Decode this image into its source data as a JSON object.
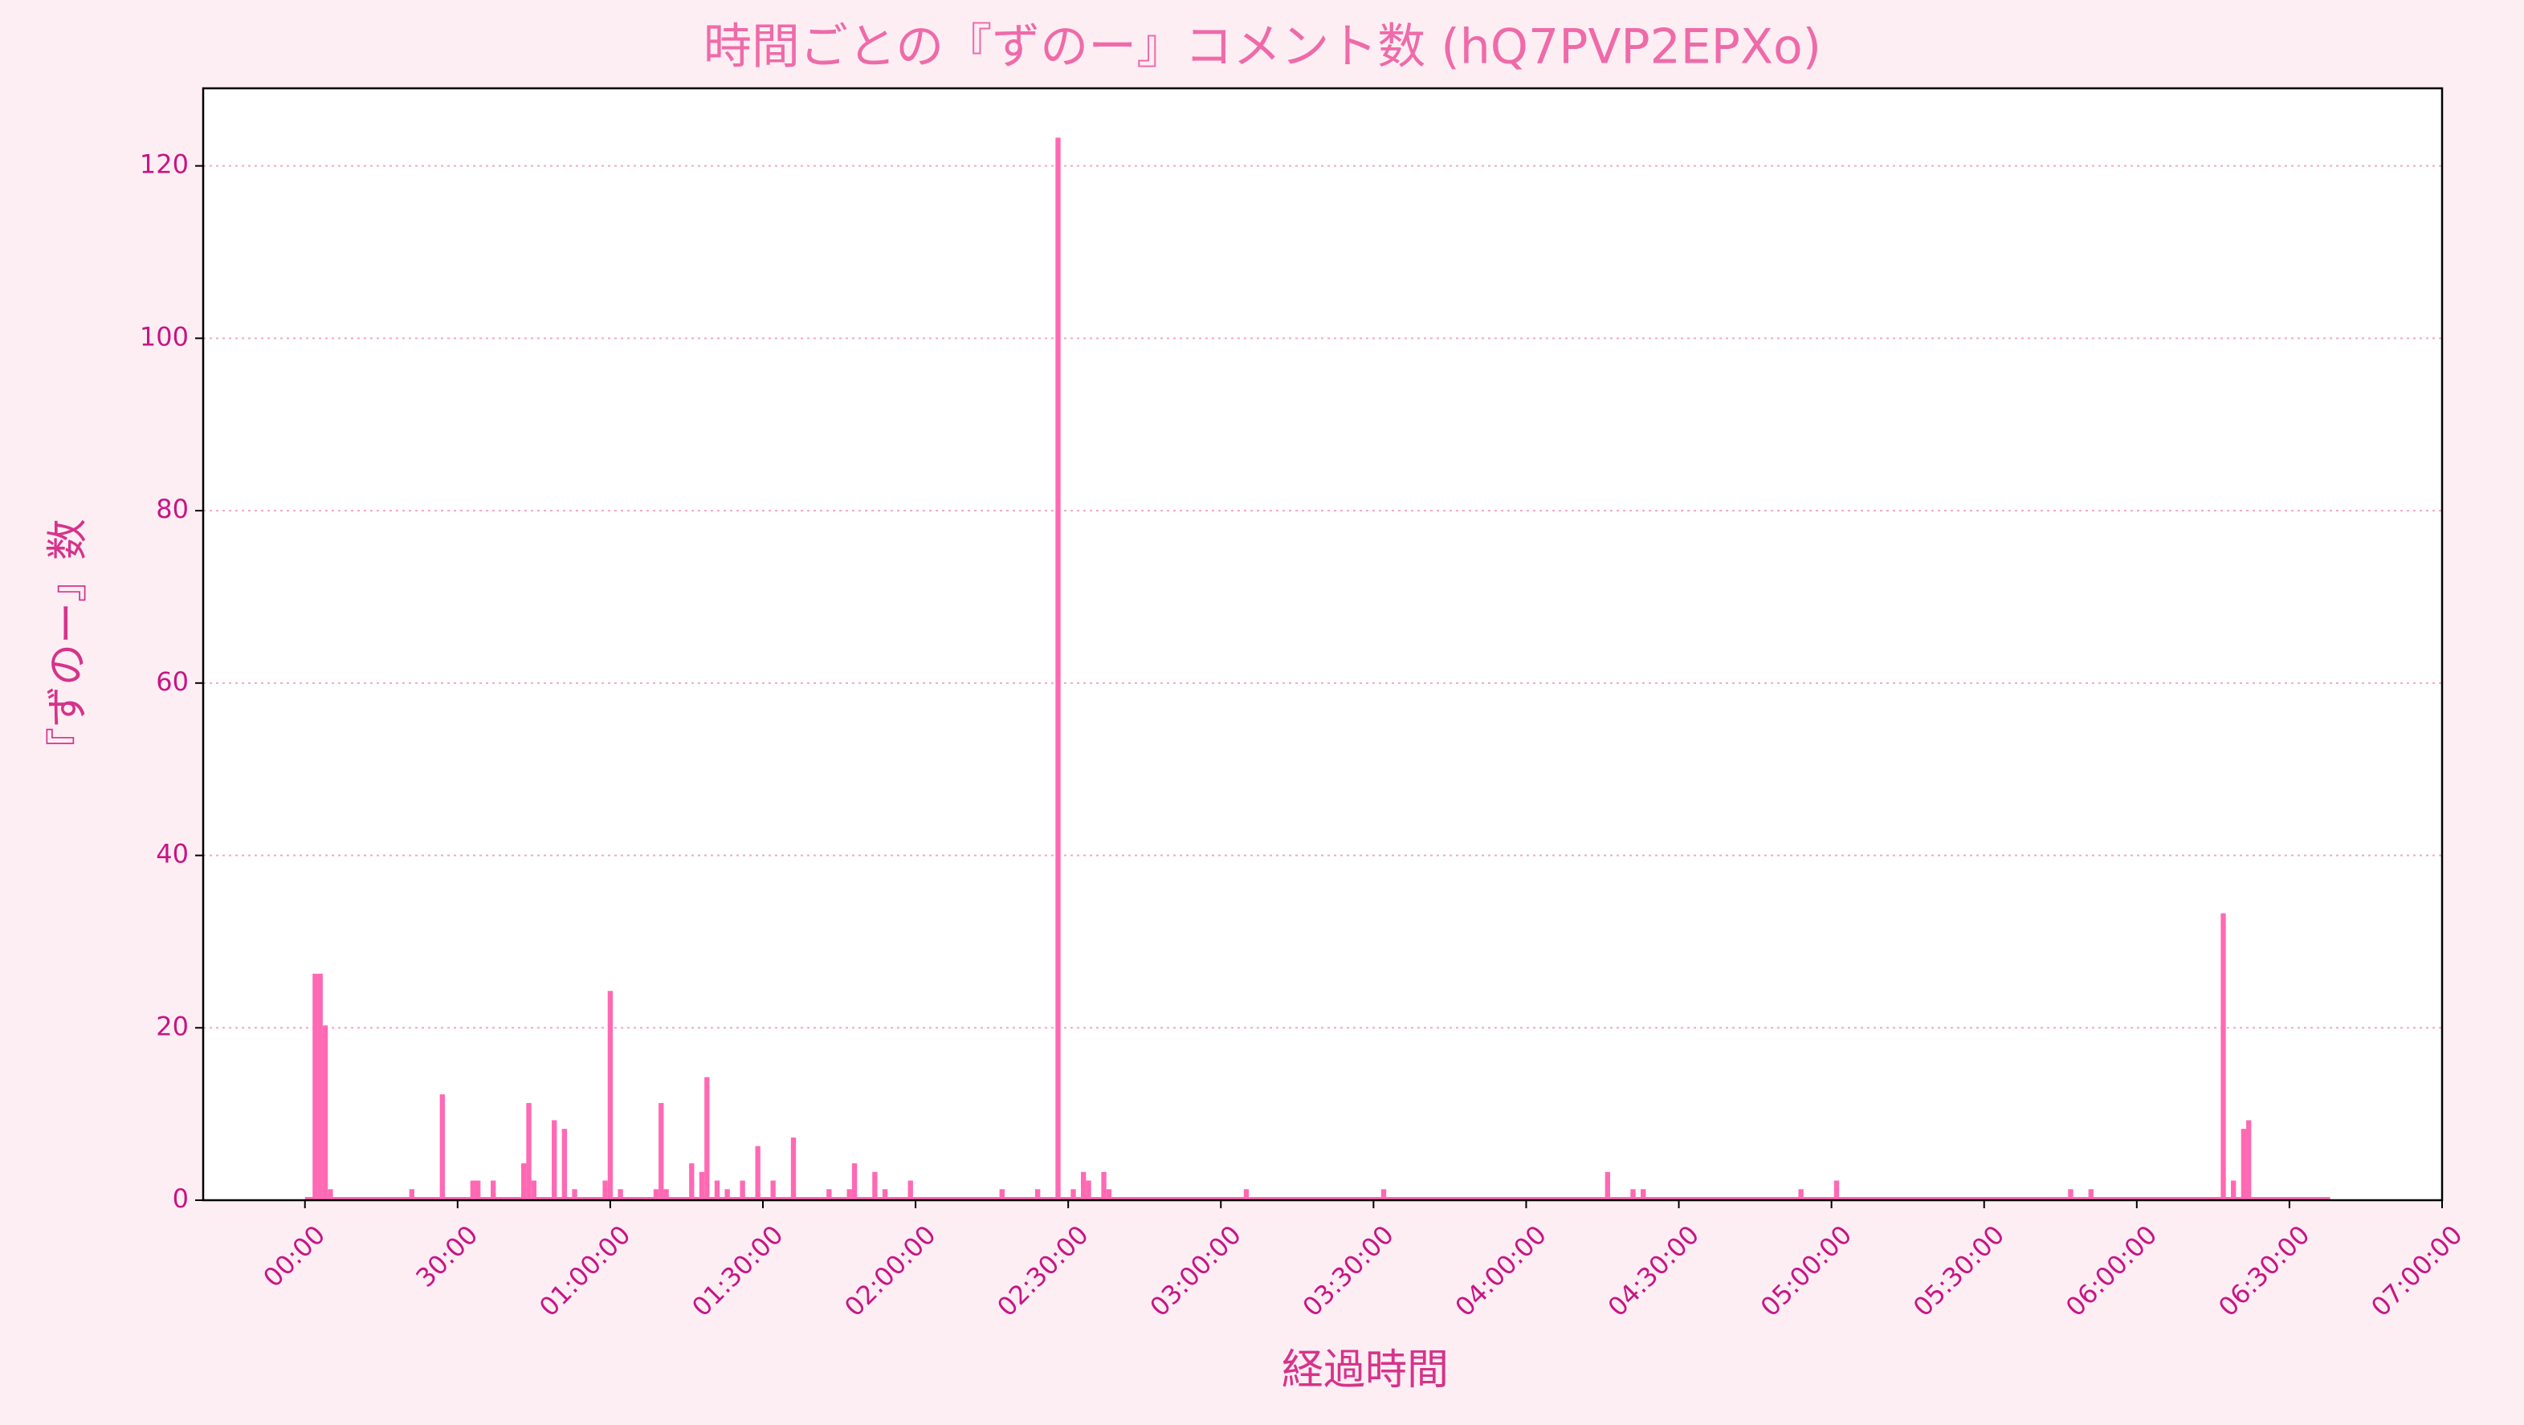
{
  "chart_data": {
    "type": "bar",
    "title": "時間ごとの『ずのー』コメント数 (hQ7PVP2EPXo)",
    "x_label": "経過時間",
    "y_label": "『ずのー』数",
    "color": "#ff69b4",
    "x": [
      2,
      3,
      4,
      5,
      21,
      27,
      33,
      34,
      37,
      43,
      44,
      45,
      49,
      51,
      53,
      59,
      60,
      62,
      69,
      70,
      71,
      76,
      78,
      79,
      81,
      83,
      86,
      89,
      92,
      96,
      103,
      107,
      108,
      112,
      114,
      119,
      137,
      144,
      148,
      151,
      153,
      154,
      157,
      158,
      185,
      212,
      256,
      261,
      263,
      294,
      301,
      347,
      351,
      377,
      379,
      381,
      382
    ],
    "values": [
      26,
      26,
      20,
      1,
      1,
      12,
      2,
      2,
      2,
      4,
      11,
      2,
      9,
      8,
      1,
      2,
      24,
      1,
      1,
      11,
      1,
      4,
      3,
      14,
      2,
      1,
      2,
      6,
      2,
      7,
      1,
      1,
      4,
      3,
      1,
      2,
      1,
      1,
      123,
      1,
      3,
      2,
      3,
      1,
      1,
      1,
      3,
      1,
      1,
      1,
      2,
      1,
      1,
      33,
      2,
      8,
      9
    ],
    "xlim": [
      -20,
      420
    ],
    "ylim": [
      0,
      129
    ],
    "xticks": [
      {
        "value": 0,
        "label": "00:00"
      },
      {
        "value": 30,
        "label": "30:00"
      },
      {
        "value": 60,
        "label": "01:00:00"
      },
      {
        "value": 90,
        "label": "01:30:00"
      },
      {
        "value": 120,
        "label": "02:00:00"
      },
      {
        "value": 150,
        "label": "02:30:00"
      },
      {
        "value": 180,
        "label": "03:00:00"
      },
      {
        "value": 210,
        "label": "03:30:00"
      },
      {
        "value": 240,
        "label": "04:00:00"
      },
      {
        "value": 270,
        "label": "04:30:00"
      },
      {
        "value": 300,
        "label": "05:00:00"
      },
      {
        "value": 330,
        "label": "05:30:00"
      },
      {
        "value": 360,
        "label": "06:00:00"
      },
      {
        "value": 390,
        "label": "06:30:00"
      },
      {
        "value": 420,
        "label": "07:00:00"
      }
    ],
    "yticks": [
      0,
      20,
      40,
      60,
      80,
      100,
      120
    ],
    "grid": true
  }
}
